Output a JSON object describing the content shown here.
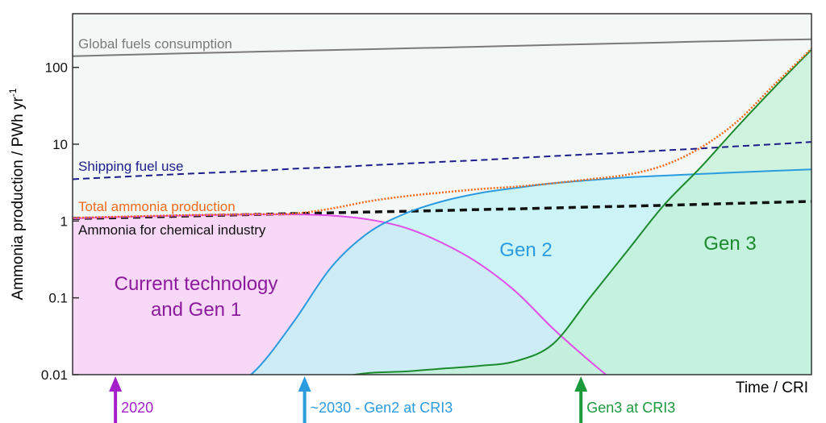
{
  "chart_data": {
    "type": "line",
    "ylabel": "Ammonia production / PWh yr",
    "ylabel_sup": "-1",
    "xlabel": "Time / CRI",
    "log_y": true,
    "ylim": [
      0.01,
      500
    ],
    "yticks": [
      0.01,
      0.1,
      1,
      10,
      100
    ],
    "xlim": [
      0,
      100
    ],
    "x": [
      0,
      5,
      10,
      15,
      20,
      25,
      30,
      35,
      40,
      45,
      50,
      55,
      60,
      65,
      70,
      75,
      80,
      85,
      90,
      95,
      100
    ],
    "series": [
      {
        "name": "Global fuels consumption",
        "color": "#7a7a7a",
        "style": "solid",
        "values": [
          140,
          144,
          148,
          152,
          156,
          160,
          164,
          168,
          172,
          177,
          181,
          186,
          191,
          196,
          201,
          206,
          211,
          217,
          222,
          228,
          232
        ]
      },
      {
        "name": "Shipping fuel use",
        "color": "#1c1c8a",
        "style": "dashed",
        "values": [
          3.5,
          3.7,
          3.9,
          4.1,
          4.3,
          4.5,
          4.8,
          5.0,
          5.3,
          5.6,
          5.9,
          6.2,
          6.6,
          7.0,
          7.4,
          7.8,
          8.3,
          8.8,
          9.4,
          10.0,
          10.7
        ]
      },
      {
        "name": "Ammonia for chemical industry",
        "color": "#111111",
        "style": "bold-dashed",
        "values": [
          1.08,
          1.1,
          1.13,
          1.16,
          1.19,
          1.22,
          1.25,
          1.28,
          1.31,
          1.34,
          1.37,
          1.41,
          1.44,
          1.48,
          1.52,
          1.56,
          1.6,
          1.65,
          1.7,
          1.75,
          1.8
        ]
      },
      {
        "label": [
          "Current technology",
          "and Gen 1"
        ],
        "color": "#e24de8",
        "fill": "#f8cdf6",
        "label_color": "#8b1a9c",
        "style": "solid",
        "values": [
          1.08,
          1.12,
          1.15,
          1.18,
          1.2,
          1.22,
          1.22,
          1.18,
          1.05,
          0.82,
          0.52,
          0.28,
          0.12,
          0.04,
          0.015,
          0.006,
          null,
          null,
          null,
          null,
          null
        ]
      },
      {
        "name": "Gen 2",
        "color": "#2b9be0",
        "fill": "#bff3f5",
        "label_color": "#2b9be0",
        "style": "solid",
        "values": [
          null,
          null,
          null,
          null,
          0.005,
          0.012,
          0.05,
          0.25,
          0.7,
          1.25,
          1.8,
          2.3,
          2.7,
          3.1,
          3.4,
          3.7,
          3.9,
          4.1,
          4.3,
          4.5,
          4.7
        ]
      },
      {
        "name": "Gen 3",
        "color": "#1b8a2c",
        "fill": "#c3f2d6",
        "label_color": "#1b8a2c",
        "style": "solid",
        "values": [
          null,
          null,
          null,
          null,
          null,
          null,
          null,
          0.009,
          0.0105,
          0.011,
          0.012,
          0.013,
          0.015,
          0.025,
          0.1,
          0.4,
          1.6,
          5,
          17,
          55,
          170
        ]
      },
      {
        "name": "Total ammonia production",
        "color": "#f26a1b",
        "style": "dotted",
        "values": [
          1.1,
          1.13,
          1.16,
          1.19,
          1.21,
          1.23,
          1.25,
          1.45,
          1.8,
          2.1,
          2.35,
          2.6,
          2.8,
          3.1,
          3.5,
          4.0,
          5.3,
          9,
          20,
          60,
          175
        ]
      }
    ],
    "markers": [
      {
        "x": 5.8,
        "label": "2020",
        "color": "#a21fc9"
      },
      {
        "x": 31.4,
        "label": "~2030 - Gen2 at CRI3",
        "color": "#2b9be0"
      },
      {
        "x": 68.8,
        "label": "Gen3 at CRI3",
        "color": "#1b9a3c"
      }
    ]
  }
}
